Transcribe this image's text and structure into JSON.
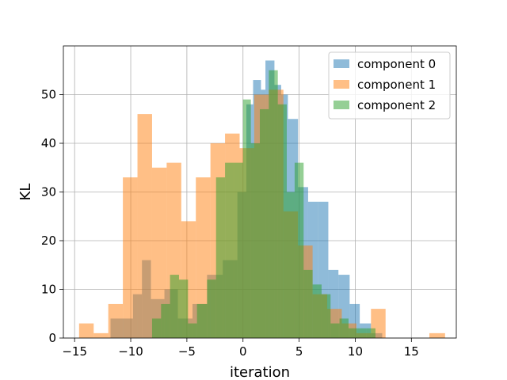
{
  "chart_data": {
    "type": "histogram",
    "title": "",
    "xlabel": "iteration",
    "ylabel": "KL",
    "xlim": [
      -16,
      19
    ],
    "ylim": [
      0,
      60
    ],
    "xticks": [
      -15,
      -10,
      -5,
      0,
      5,
      10,
      15
    ],
    "yticks": [
      0,
      10,
      20,
      30,
      40,
      50
    ],
    "grid": true,
    "legend_position": "top-right",
    "series": [
      {
        "name": "component 0",
        "color": "#1f77b4",
        "bins": [
          {
            "x0": -11.8,
            "x1": -9.8,
            "count": 4
          },
          {
            "x0": -9.8,
            "x1": -9.0,
            "count": 9
          },
          {
            "x0": -9.0,
            "x1": -8.2,
            "count": 16
          },
          {
            "x0": -8.2,
            "x1": -7.0,
            "count": 8
          },
          {
            "x0": -7.0,
            "x1": -5.8,
            "count": 10
          },
          {
            "x0": -5.8,
            "x1": -4.5,
            "count": 4
          },
          {
            "x0": -4.5,
            "x1": -3.2,
            "count": 7
          },
          {
            "x0": -3.2,
            "x1": -1.8,
            "count": 13
          },
          {
            "x0": -1.8,
            "x1": -0.5,
            "count": 16
          },
          {
            "x0": -0.5,
            "x1": 0.3,
            "count": 30
          },
          {
            "x0": 0.3,
            "x1": 0.9,
            "count": 48
          },
          {
            "x0": 0.9,
            "x1": 1.6,
            "count": 53
          },
          {
            "x0": 1.6,
            "x1": 2.0,
            "count": 51
          },
          {
            "x0": 2.0,
            "x1": 2.8,
            "count": 57
          },
          {
            "x0": 2.8,
            "x1": 3.4,
            "count": 52
          },
          {
            "x0": 3.4,
            "x1": 4.0,
            "count": 50
          },
          {
            "x0": 4.0,
            "x1": 4.9,
            "count": 45
          },
          {
            "x0": 4.9,
            "x1": 5.8,
            "count": 31
          },
          {
            "x0": 5.8,
            "x1": 6.7,
            "count": 28
          },
          {
            "x0": 6.7,
            "x1": 7.6,
            "count": 28
          },
          {
            "x0": 7.6,
            "x1": 8.5,
            "count": 14
          },
          {
            "x0": 8.5,
            "x1": 9.5,
            "count": 13
          },
          {
            "x0": 9.5,
            "x1": 10.4,
            "count": 7
          },
          {
            "x0": 10.4,
            "x1": 11.4,
            "count": 3
          },
          {
            "x0": 11.4,
            "x1": 12.4,
            "count": 1
          }
        ]
      },
      {
        "name": "component 1",
        "color": "#ff7f0e",
        "bins": [
          {
            "x0": -14.6,
            "x1": -13.3,
            "count": 3
          },
          {
            "x0": -13.3,
            "x1": -12.0,
            "count": 1
          },
          {
            "x0": -12.0,
            "x1": -10.7,
            "count": 7
          },
          {
            "x0": -10.7,
            "x1": -9.4,
            "count": 33
          },
          {
            "x0": -9.4,
            "x1": -8.1,
            "count": 46
          },
          {
            "x0": -8.1,
            "x1": -6.8,
            "count": 35
          },
          {
            "x0": -6.8,
            "x1": -5.5,
            "count": 36
          },
          {
            "x0": -5.5,
            "x1": -4.2,
            "count": 24
          },
          {
            "x0": -4.2,
            "x1": -2.9,
            "count": 33
          },
          {
            "x0": -2.9,
            "x1": -1.6,
            "count": 40
          },
          {
            "x0": -1.6,
            "x1": -0.3,
            "count": 42
          },
          {
            "x0": -0.3,
            "x1": 1.0,
            "count": 39
          },
          {
            "x0": 1.0,
            "x1": 2.3,
            "count": 50
          },
          {
            "x0": 2.3,
            "x1": 3.6,
            "count": 51
          },
          {
            "x0": 3.6,
            "x1": 4.9,
            "count": 26
          },
          {
            "x0": 4.9,
            "x1": 6.2,
            "count": 19
          },
          {
            "x0": 6.2,
            "x1": 7.5,
            "count": 9
          },
          {
            "x0": 7.5,
            "x1": 8.8,
            "count": 6
          },
          {
            "x0": 8.8,
            "x1": 10.1,
            "count": 3
          },
          {
            "x0": 10.1,
            "x1": 11.4,
            "count": 1
          },
          {
            "x0": 11.4,
            "x1": 12.7,
            "count": 6
          },
          {
            "x0": 12.7,
            "x1": 14.0,
            "count": 0
          },
          {
            "x0": 14.0,
            "x1": 15.3,
            "count": 0
          },
          {
            "x0": 15.3,
            "x1": 16.6,
            "count": 0
          },
          {
            "x0": 16.6,
            "x1": 18.0,
            "count": 1
          }
        ]
      },
      {
        "name": "component 2",
        "color": "#2ca02c",
        "bins": [
          {
            "x0": -8.1,
            "x1": -7.3,
            "count": 4
          },
          {
            "x0": -7.3,
            "x1": -6.5,
            "count": 7
          },
          {
            "x0": -6.5,
            "x1": -5.7,
            "count": 13
          },
          {
            "x0": -5.7,
            "x1": -4.9,
            "count": 12
          },
          {
            "x0": -4.9,
            "x1": -4.1,
            "count": 3
          },
          {
            "x0": -4.1,
            "x1": -3.2,
            "count": 7
          },
          {
            "x0": -3.2,
            "x1": -2.4,
            "count": 12
          },
          {
            "x0": -2.4,
            "x1": -1.6,
            "count": 33
          },
          {
            "x0": -1.6,
            "x1": -0.8,
            "count": 36
          },
          {
            "x0": -0.8,
            "x1": 0.0,
            "count": 36
          },
          {
            "x0": 0.0,
            "x1": 0.7,
            "count": 49
          },
          {
            "x0": 0.7,
            "x1": 1.5,
            "count": 40
          },
          {
            "x0": 1.5,
            "x1": 2.3,
            "count": 47
          },
          {
            "x0": 2.3,
            "x1": 3.1,
            "count": 55
          },
          {
            "x0": 3.1,
            "x1": 3.9,
            "count": 48
          },
          {
            "x0": 3.9,
            "x1": 4.6,
            "count": 30
          },
          {
            "x0": 4.6,
            "x1": 5.4,
            "count": 36
          },
          {
            "x0": 5.4,
            "x1": 6.2,
            "count": 14
          },
          {
            "x0": 6.2,
            "x1": 7.0,
            "count": 11
          },
          {
            "x0": 7.0,
            "x1": 7.8,
            "count": 9
          },
          {
            "x0": 7.8,
            "x1": 8.6,
            "count": 3
          },
          {
            "x0": 8.6,
            "x1": 9.4,
            "count": 4
          },
          {
            "x0": 9.4,
            "x1": 10.2,
            "count": 2
          },
          {
            "x0": 10.2,
            "x1": 11.0,
            "count": 2
          },
          {
            "x0": 11.0,
            "x1": 11.8,
            "count": 2
          }
        ]
      }
    ]
  }
}
